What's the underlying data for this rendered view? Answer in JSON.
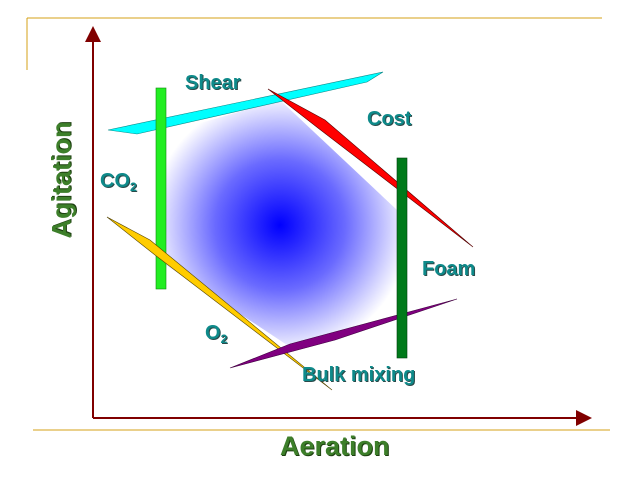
{
  "axes": {
    "x_label": "Aeration",
    "y_label": "Agitation"
  },
  "constraints": [
    {
      "id": "shear",
      "label": "Shear",
      "color": "#00ffff"
    },
    {
      "id": "cost",
      "label": "Cost",
      "color": "#ff0000"
    },
    {
      "id": "co2",
      "label": "CO",
      "sub": "2",
      "color": "#22ee22"
    },
    {
      "id": "foam",
      "label": "Foam",
      "color": "#007a1a"
    },
    {
      "id": "o2",
      "label": "O",
      "sub": "2",
      "color": "#ffcc00"
    },
    {
      "id": "bulk",
      "label": "Bulk mixing",
      "color": "#800080"
    }
  ],
  "colors": {
    "axis": "#800000",
    "frame": "#d4a017",
    "region_center": "#0000ff",
    "label": "#0e8a8a"
  }
}
